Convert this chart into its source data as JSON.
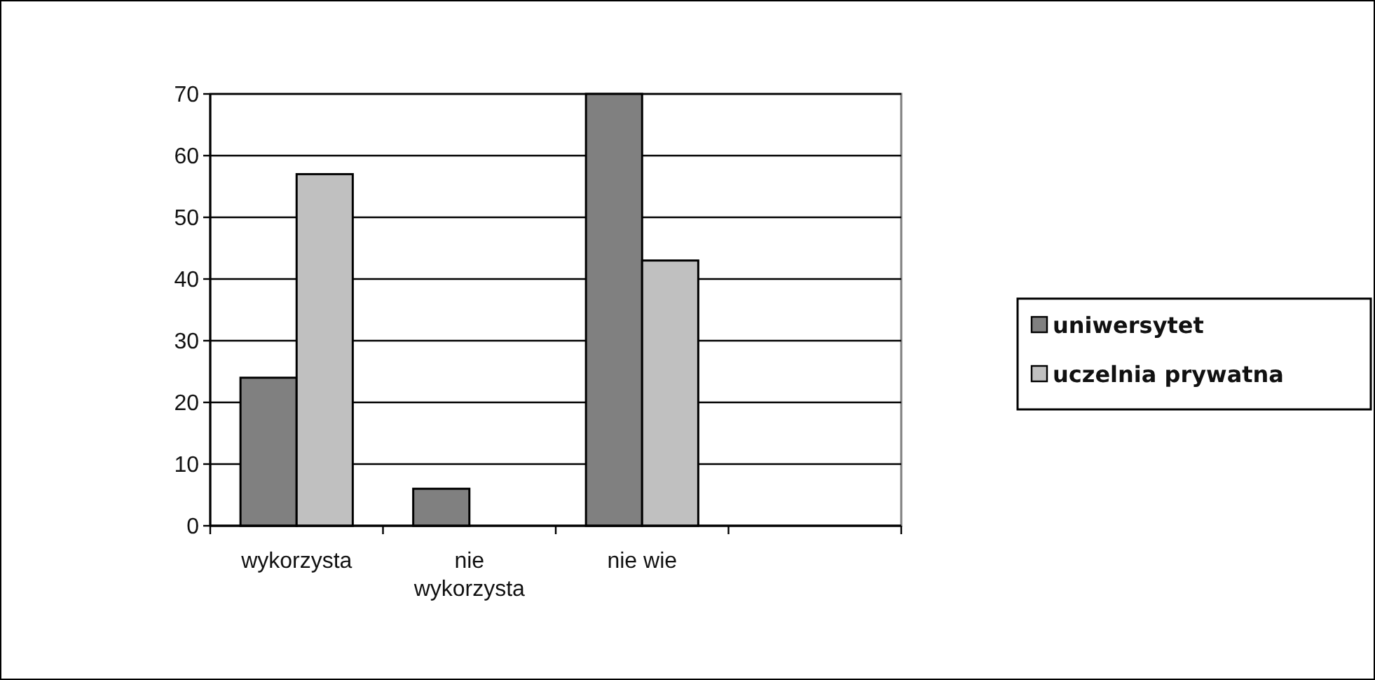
{
  "chart_data": {
    "type": "bar",
    "categories": [
      "wykorzysta",
      "nie wykorzysta",
      "nie wie",
      null
    ],
    "series": [
      {
        "name": "uniwersytet",
        "color": "#808080",
        "values": [
          24,
          6,
          70,
          null
        ]
      },
      {
        "name": "uczelnia prywatna",
        "color": "#c0c0c0",
        "values": [
          57,
          null,
          43,
          null
        ]
      }
    ],
    "ylim": [
      0,
      70
    ],
    "yticks": [
      0,
      10,
      20,
      30,
      40,
      50,
      60,
      70
    ],
    "grid": "y",
    "legend": "right"
  }
}
